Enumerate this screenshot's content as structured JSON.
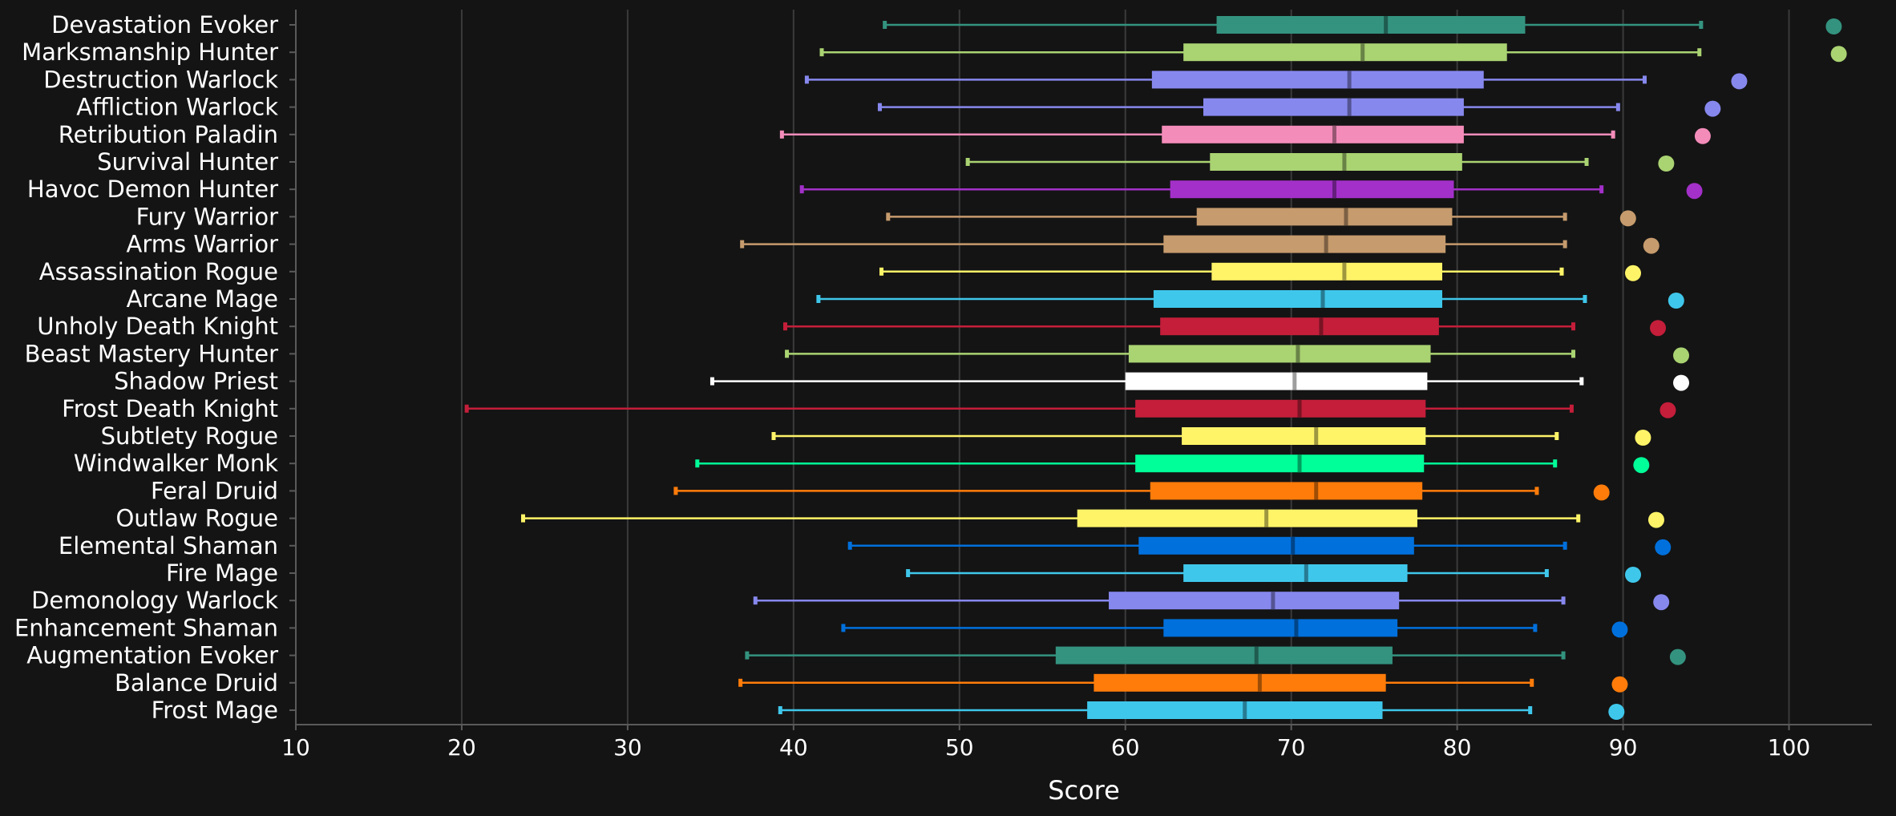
{
  "chart_data": {
    "type": "box",
    "xlabel": "Score",
    "xlim": [
      10,
      105
    ],
    "x_ticks": [
      10,
      20,
      30,
      40,
      50,
      60,
      70,
      80,
      90,
      100
    ],
    "grid": "vertical",
    "categories": [
      {
        "name": "Devastation Evoker",
        "color": "#33937f",
        "min": 45.5,
        "q1": 65.5,
        "median": 75.7,
        "q3": 84.1,
        "max": 94.7,
        "top": 102.7
      },
      {
        "name": "Marksmanship Hunter",
        "color": "#aad372",
        "min": 41.7,
        "q1": 63.5,
        "median": 74.3,
        "q3": 83.0,
        "max": 94.6,
        "top": 103.0
      },
      {
        "name": "Destruction Warlock",
        "color": "#8788ee",
        "min": 40.8,
        "q1": 61.6,
        "median": 73.5,
        "q3": 81.6,
        "max": 91.3,
        "top": 97.0
      },
      {
        "name": "Affliction Warlock",
        "color": "#8788ee",
        "min": 45.2,
        "q1": 64.7,
        "median": 73.5,
        "q3": 80.4,
        "max": 89.7,
        "top": 95.4
      },
      {
        "name": "Retribution Paladin",
        "color": "#f48cba",
        "min": 39.3,
        "q1": 62.2,
        "median": 72.6,
        "q3": 80.4,
        "max": 89.4,
        "top": 94.8
      },
      {
        "name": "Survival Hunter",
        "color": "#aad372",
        "min": 50.5,
        "q1": 65.1,
        "median": 73.2,
        "q3": 80.3,
        "max": 87.8,
        "top": 92.6
      },
      {
        "name": "Havoc Demon Hunter",
        "color": "#a330c9",
        "min": 40.5,
        "q1": 62.7,
        "median": 72.6,
        "q3": 79.8,
        "max": 88.7,
        "top": 94.3
      },
      {
        "name": "Fury Warrior",
        "color": "#c69b6d",
        "min": 45.7,
        "q1": 64.3,
        "median": 73.3,
        "q3": 79.7,
        "max": 86.5,
        "top": 90.3
      },
      {
        "name": "Arms Warrior",
        "color": "#c69b6d",
        "min": 36.9,
        "q1": 62.3,
        "median": 72.1,
        "q3": 79.3,
        "max": 86.5,
        "top": 91.7
      },
      {
        "name": "Assassination Rogue",
        "color": "#fff468",
        "min": 45.3,
        "q1": 65.2,
        "median": 73.2,
        "q3": 79.1,
        "max": 86.3,
        "top": 90.6
      },
      {
        "name": "Arcane Mage",
        "color": "#3fc7eb",
        "min": 41.5,
        "q1": 61.7,
        "median": 71.9,
        "q3": 79.1,
        "max": 87.7,
        "top": 93.2
      },
      {
        "name": "Unholy Death Knight",
        "color": "#c41e3a",
        "min": 39.5,
        "q1": 62.1,
        "median": 71.8,
        "q3": 78.9,
        "max": 87.0,
        "top": 92.1
      },
      {
        "name": "Beast Mastery Hunter",
        "color": "#aad372",
        "min": 39.6,
        "q1": 60.2,
        "median": 70.4,
        "q3": 78.4,
        "max": 87.0,
        "top": 93.5
      },
      {
        "name": "Shadow Priest",
        "color": "#ffffff",
        "min": 35.1,
        "q1": 60.0,
        "median": 70.2,
        "q3": 78.2,
        "max": 87.5,
        "top": 93.5
      },
      {
        "name": "Frost Death Knight",
        "color": "#c41e3a",
        "min": 20.3,
        "q1": 60.6,
        "median": 70.5,
        "q3": 78.1,
        "max": 86.9,
        "top": 92.7
      },
      {
        "name": "Subtlety Rogue",
        "color": "#fff468",
        "min": 38.8,
        "q1": 63.4,
        "median": 71.5,
        "q3": 78.1,
        "max": 86.0,
        "top": 91.2
      },
      {
        "name": "Windwalker Monk",
        "color": "#00ff98",
        "min": 34.2,
        "q1": 60.6,
        "median": 70.5,
        "q3": 78.0,
        "max": 85.9,
        "top": 91.1
      },
      {
        "name": "Feral Druid",
        "color": "#ff7c0a",
        "min": 32.9,
        "q1": 61.5,
        "median": 71.5,
        "q3": 77.9,
        "max": 84.8,
        "top": 88.7
      },
      {
        "name": "Outlaw Rogue",
        "color": "#fff468",
        "min": 23.7,
        "q1": 57.1,
        "median": 68.5,
        "q3": 77.6,
        "max": 87.3,
        "top": 92.0
      },
      {
        "name": "Elemental Shaman",
        "color": "#0070dd",
        "min": 43.4,
        "q1": 60.8,
        "median": 70.1,
        "q3": 77.4,
        "max": 86.5,
        "top": 92.4
      },
      {
        "name": "Fire Mage",
        "color": "#3fc7eb",
        "min": 46.9,
        "q1": 63.5,
        "median": 70.9,
        "q3": 77.0,
        "max": 85.4,
        "top": 90.6
      },
      {
        "name": "Demonology Warlock",
        "color": "#8788ee",
        "min": 37.7,
        "q1": 59.0,
        "median": 68.9,
        "q3": 76.5,
        "max": 86.4,
        "top": 92.3
      },
      {
        "name": "Enhancement Shaman",
        "color": "#0070dd",
        "min": 43.0,
        "q1": 62.3,
        "median": 70.3,
        "q3": 76.4,
        "max": 84.7,
        "top": 89.8
      },
      {
        "name": "Augmentation Evoker",
        "color": "#33937f",
        "min": 37.2,
        "q1": 55.8,
        "median": 67.9,
        "q3": 76.1,
        "max": 86.4,
        "top": 93.3
      },
      {
        "name": "Balance Druid",
        "color": "#ff7c0a",
        "min": 36.8,
        "q1": 58.1,
        "median": 68.1,
        "q3": 75.7,
        "max": 84.5,
        "top": 89.8
      },
      {
        "name": "Frost Mage",
        "color": "#3fc7eb",
        "min": 39.2,
        "q1": 57.7,
        "median": 67.2,
        "q3": 75.5,
        "max": 84.4,
        "top": 89.6
      }
    ]
  },
  "colors": {
    "background": "#141414",
    "grid": "#3a3a3a",
    "axis": "#5a5a5a",
    "text": "#ffffff"
  }
}
